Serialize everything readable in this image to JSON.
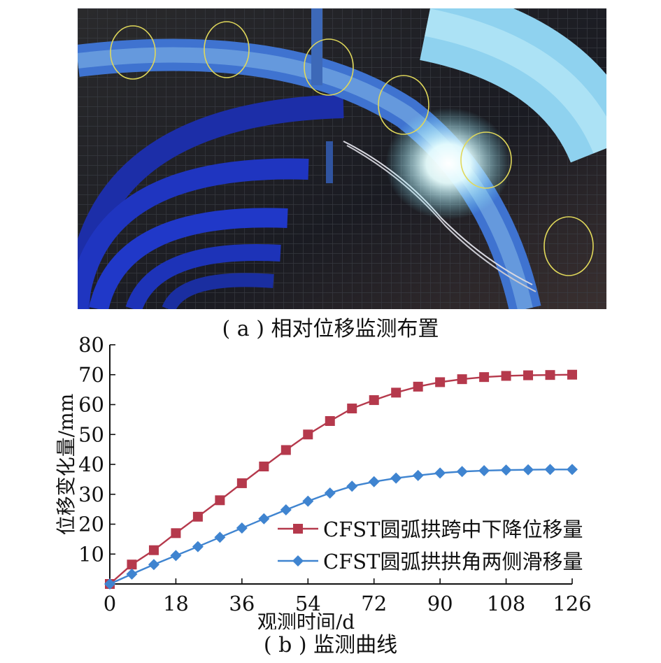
{
  "captions": {
    "a": "( a ) 相对位移监测布置",
    "b": "( b ) 监测曲线"
  },
  "photo": {
    "description_label": "tunnel-arch-photo",
    "icon": "tunnel-photo-icon"
  },
  "colors": {
    "series_1": "#b5394c",
    "series_2": "#3f84d0",
    "axis": "#111111",
    "marker_circle": "#e0d85a"
  },
  "chart_data": {
    "type": "line",
    "xlabel": "观测时间/d",
    "ylabel": "位移变化量/mm",
    "xlim": [
      0,
      126
    ],
    "ylim": [
      0,
      80
    ],
    "xticks": [
      0,
      18,
      36,
      54,
      72,
      90,
      108,
      126
    ],
    "yticks": [
      10,
      20,
      30,
      40,
      50,
      60,
      70,
      80
    ],
    "grid": false,
    "legend_position": "lower-right",
    "series": [
      {
        "name": "CFST圆弧拱跨中下降位移量",
        "marker": "square",
        "x": [
          0,
          6,
          12,
          18,
          24,
          30,
          36,
          42,
          48,
          54,
          60,
          66,
          72,
          78,
          84,
          90,
          96,
          102,
          108,
          114,
          120,
          126
        ],
        "y": [
          0,
          6.5,
          11.3,
          17,
          22.5,
          28,
          33.7,
          39.3,
          44.8,
          50,
          54.5,
          58.7,
          61.5,
          64,
          66,
          67.5,
          68.5,
          69.2,
          69.6,
          69.8,
          69.9,
          70
        ]
      },
      {
        "name": "CFST圆弧拱拱角两侧滑移量",
        "marker": "diamond",
        "x": [
          0,
          6,
          12,
          18,
          24,
          30,
          36,
          42,
          48,
          54,
          60,
          66,
          72,
          78,
          84,
          90,
          96,
          102,
          108,
          114,
          120,
          126
        ],
        "y": [
          0,
          3.3,
          6.5,
          9.5,
          12.5,
          15.6,
          18.7,
          21.8,
          24.8,
          27.7,
          30.4,
          32.7,
          34.2,
          35.4,
          36.3,
          37.1,
          37.6,
          37.9,
          38.1,
          38.2,
          38.3,
          38.3
        ]
      }
    ]
  }
}
